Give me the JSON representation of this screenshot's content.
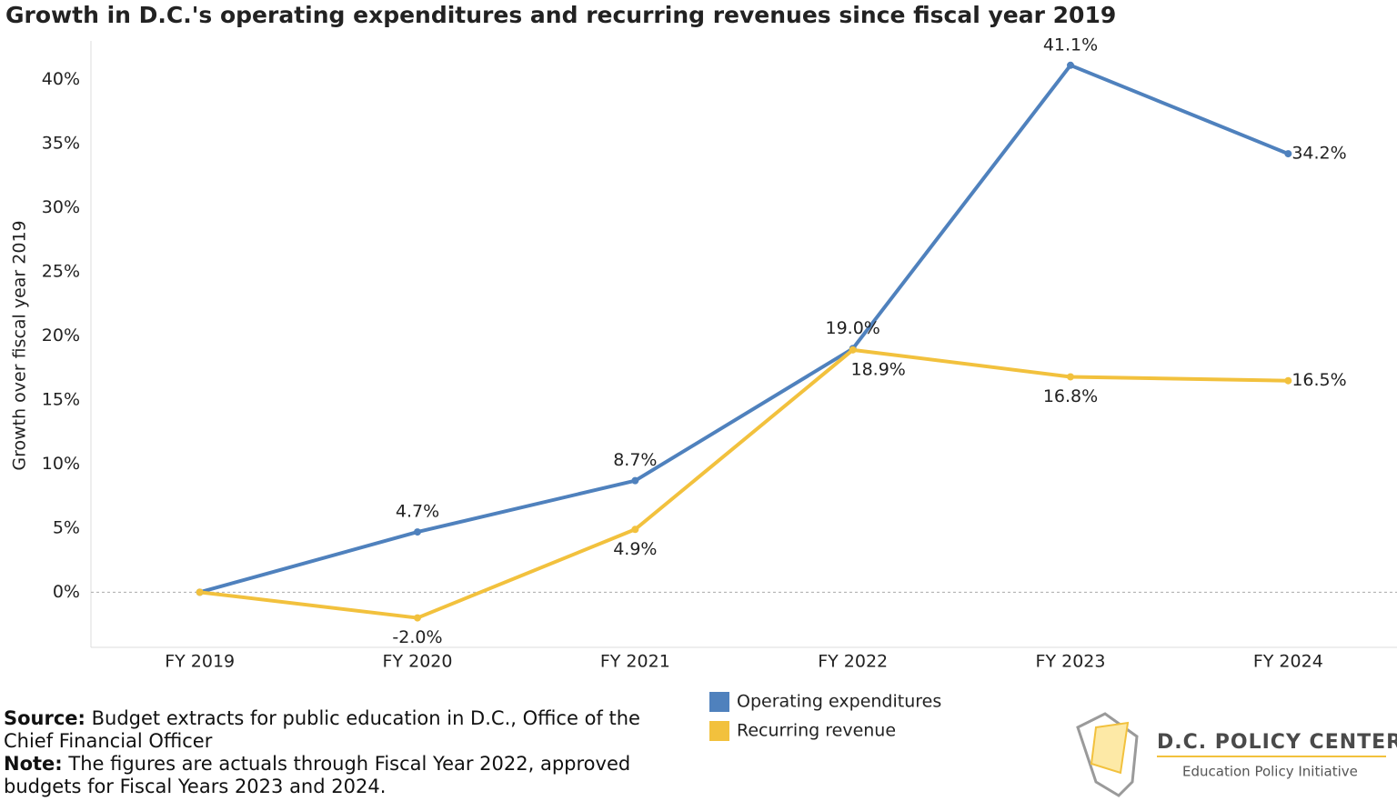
{
  "chart_data": {
    "type": "line",
    "title": "Growth in D.C.'s operating expenditures and recurring revenues since fiscal year 2019",
    "y_label": "Growth over fiscal year  2019",
    "categories": [
      "FY 2019",
      "FY 2020",
      "FY 2021",
      "FY 2022",
      "FY 2023",
      "FY 2024"
    ],
    "series": [
      {
        "name": "Operating expenditures",
        "color": "#4f81bd",
        "values": [
          0,
          4.7,
          8.7,
          19.0,
          41.1,
          34.2
        ],
        "value_labels": [
          null,
          "4.7%",
          "8.7%",
          "19.0%",
          "41.1%",
          "34.2%"
        ]
      },
      {
        "name": "Recurring revenue",
        "color": "#f2c13d",
        "values": [
          0,
          -2.0,
          4.9,
          18.9,
          16.8,
          16.5
        ],
        "value_labels": [
          null,
          "-2.0%",
          "4.9%",
          "18.9%",
          "16.8%",
          "16.5%"
        ]
      }
    ],
    "ylim": [
      -4.3,
      43
    ],
    "yticks": [
      {
        "value": 0,
        "label": "0%"
      },
      {
        "value": 5,
        "label": "5%"
      },
      {
        "value": 10,
        "label": "10%"
      },
      {
        "value": 15,
        "label": "15%"
      },
      {
        "value": 20,
        "label": "20%"
      },
      {
        "value": 25,
        "label": "25%"
      },
      {
        "value": 30,
        "label": "30%"
      },
      {
        "value": 35,
        "label": "35%"
      },
      {
        "value": 40,
        "label": "40%"
      }
    ],
    "grid": false
  },
  "footer": {
    "source_label": "Source:",
    "source_text": "Budget extracts for public education in D.C., Office of the Chief Financial Officer",
    "note_label": "Note:",
    "note_text": "The figures are actuals through Fiscal Year 2022, approved budgets for Fiscal Years 2023 and 2024."
  },
  "logo": {
    "name": "D.C. POLICY CENTER",
    "subtitle": "Education Policy Initiative"
  }
}
